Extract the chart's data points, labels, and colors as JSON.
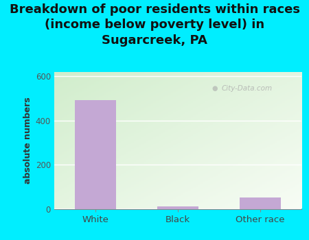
{
  "categories": [
    "White",
    "Black",
    "Other race"
  ],
  "values": [
    493,
    10,
    50
  ],
  "bar_color": "#c4a8d4",
  "title_line1": "Breakdown of poor residents within races",
  "title_line2": "(income below poverty level) in",
  "title_line3": "Sugarcreek, PA",
  "ylabel": "absolute numbers",
  "ylim": [
    0,
    620
  ],
  "yticks": [
    0,
    200,
    400,
    600
  ],
  "bg_cyan": "#00eeff",
  "chart_bg_topleft": "#cce8c8",
  "chart_bg_right": "#f0f8ee",
  "watermark": "City-Data.com",
  "title_fontsize": 13,
  "bar_width": 0.5
}
